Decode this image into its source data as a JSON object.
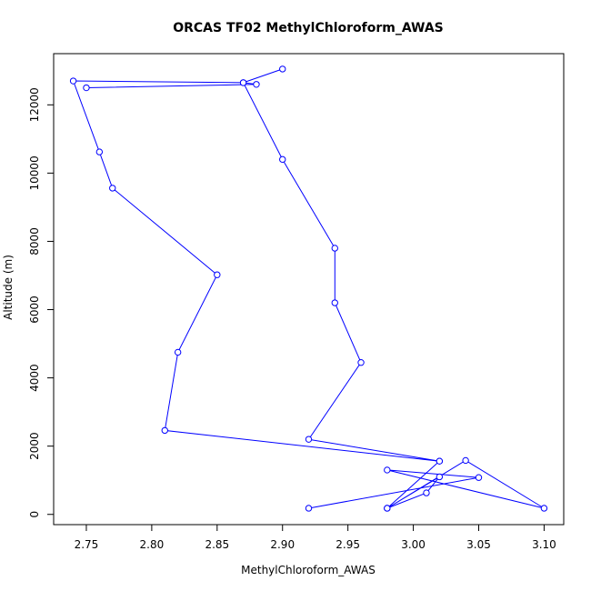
{
  "chart_data": {
    "type": "line",
    "title": "ORCAS TF02 MethylChloroform_AWAS",
    "xlabel": "MethylChloroform_AWAS",
    "ylabel": "Altitude (m)",
    "xlim": [
      2.725,
      3.115
    ],
    "ylim": [
      -300,
      13500
    ],
    "x_ticks": [
      2.75,
      2.8,
      2.85,
      2.9,
      2.95,
      3.0,
      3.05,
      3.1
    ],
    "x_tick_labels": [
      "2.75",
      "2.80",
      "2.85",
      "2.90",
      "2.95",
      "3.00",
      "3.05",
      "3.10"
    ],
    "y_ticks": [
      0,
      2000,
      4000,
      6000,
      8000,
      10000,
      12000
    ],
    "y_tick_labels": [
      "0",
      "2000",
      "4000",
      "6000",
      "8000",
      "10000",
      "12000"
    ],
    "grid": false,
    "series": [
      {
        "color": "#0000ff",
        "marker": "open-circle",
        "points": [
          {
            "x": 2.92,
            "y": 180
          },
          {
            "x": 3.05,
            "y": 1080
          },
          {
            "x": 2.98,
            "y": 1300
          },
          {
            "x": 3.1,
            "y": 180
          },
          {
            "x": 3.04,
            "y": 1580
          },
          {
            "x": 2.98,
            "y": 180
          },
          {
            "x": 3.01,
            "y": 630
          },
          {
            "x": 3.02,
            "y": 1100
          },
          {
            "x": 2.98,
            "y": 180
          },
          {
            "x": 3.02,
            "y": 1560
          },
          {
            "x": 2.92,
            "y": 2200
          },
          {
            "x": 2.96,
            "y": 4450
          },
          {
            "x": 2.94,
            "y": 6200
          },
          {
            "x": 2.94,
            "y": 7800
          },
          {
            "x": 2.9,
            "y": 10400
          },
          {
            "x": 2.87,
            "y": 12650
          },
          {
            "x": 2.74,
            "y": 12700
          },
          {
            "x": 2.76,
            "y": 10620
          },
          {
            "x": 2.77,
            "y": 9560
          },
          {
            "x": 2.85,
            "y": 7020
          },
          {
            "x": 2.82,
            "y": 4750
          },
          {
            "x": 2.81,
            "y": 2460
          },
          {
            "x": 3.02,
            "y": 1560
          }
        ]
      },
      {
        "color": "#0000ff",
        "marker": "open-circle",
        "points": [
          {
            "x": 2.75,
            "y": 12500
          },
          {
            "x": 2.88,
            "y": 12600
          },
          {
            "x": 2.87,
            "y": 12650
          },
          {
            "x": 2.9,
            "y": 13050
          }
        ]
      }
    ]
  }
}
